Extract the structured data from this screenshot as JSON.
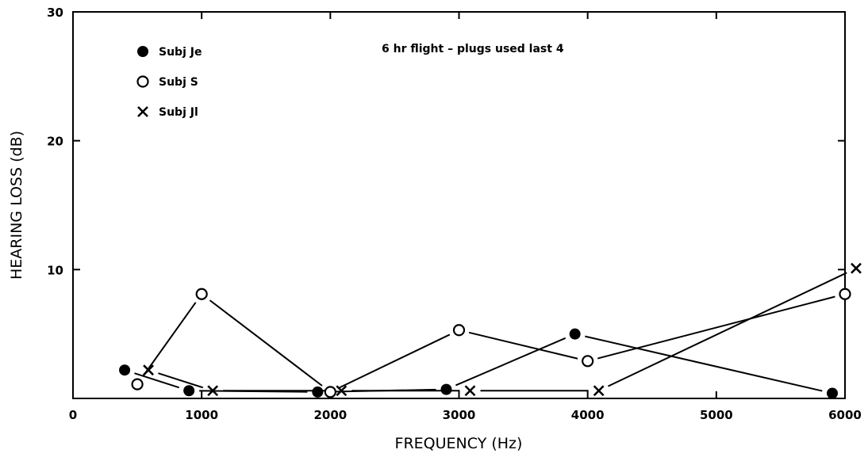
{
  "chart_data": {
    "type": "line",
    "title": "",
    "annotation": "6 hr flight – plugs used last 4",
    "xlabel": "FREQUENCY (Hz)",
    "ylabel": "HEARING LOSS (dB)",
    "xlim": [
      0,
      6000
    ],
    "ylim": [
      0,
      30
    ],
    "x_ticks": [
      0,
      1000,
      2000,
      3000,
      4000,
      5000,
      6000
    ],
    "y_ticks": [
      10,
      20,
      30
    ],
    "grid": false,
    "legend_position": "top-left",
    "series": [
      {
        "name": "Subj Je",
        "marker": "filled-circle",
        "points": [
          [
            500,
            2.2
          ],
          [
            1000,
            0.6
          ],
          [
            2000,
            0.5
          ],
          [
            3000,
            0.7
          ],
          [
            4000,
            5.0
          ],
          [
            6000,
            0.4
          ]
        ]
      },
      {
        "name": "Subj S",
        "marker": "open-circle",
        "points": [
          [
            500,
            1.1
          ],
          [
            1000,
            8.1
          ],
          [
            2000,
            0.5
          ],
          [
            3000,
            5.3
          ],
          [
            4000,
            2.9
          ],
          [
            6000,
            8.1
          ]
        ]
      },
      {
        "name": "Subj Jl",
        "marker": "x",
        "points": [
          [
            500,
            2.2
          ],
          [
            1000,
            0.6
          ],
          [
            2000,
            0.6
          ],
          [
            3000,
            0.6
          ],
          [
            4000,
            0.6
          ],
          [
            6000,
            10.1
          ]
        ]
      }
    ]
  }
}
